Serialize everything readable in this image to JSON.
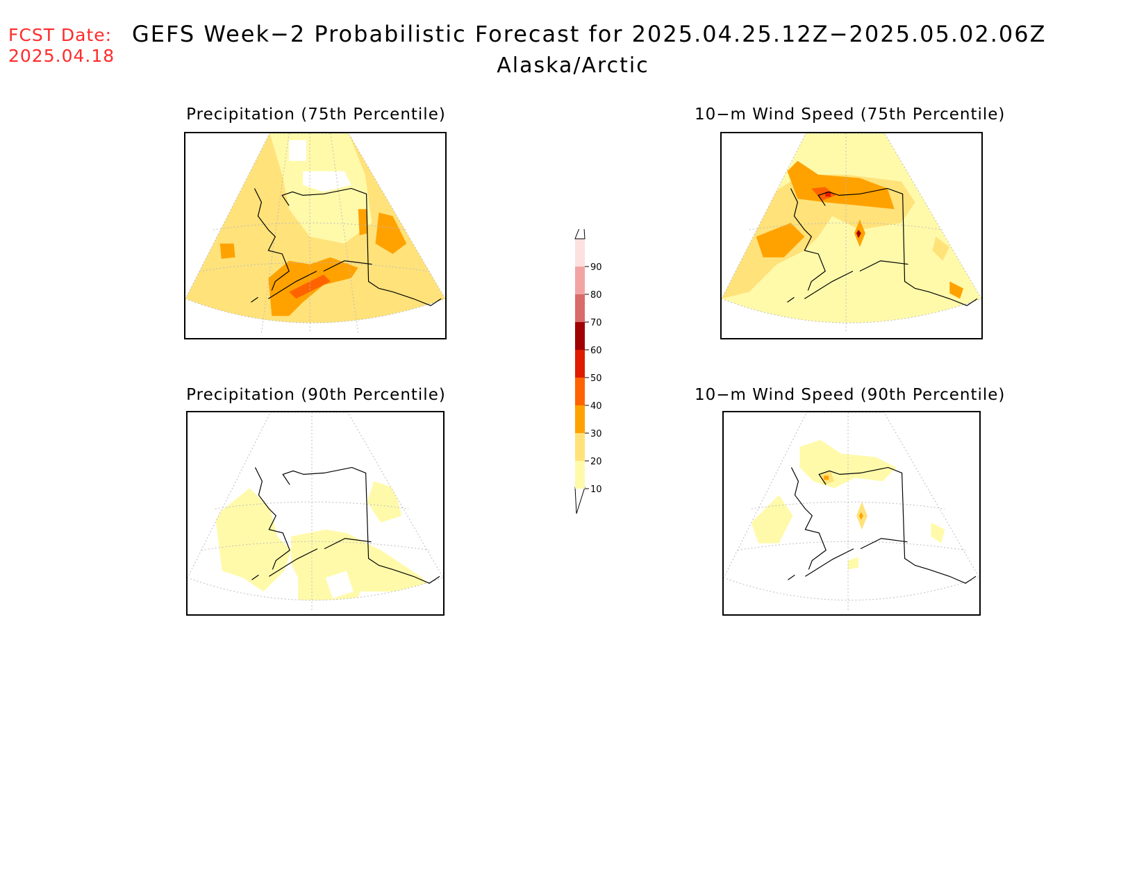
{
  "header": {
    "fcst_label": "FCST Date:",
    "fcst_date": "2025.04.18",
    "title": "GEFS Week−2 Probabilistic Forecast for 2025.04.25.12Z−2025.05.02.06Z",
    "region": "Alaska/Arctic"
  },
  "panels": [
    {
      "id": "precip75",
      "title": "Precipitation (75th Percentile)"
    },
    {
      "id": "wind75",
      "title": "10−m Wind Speed (75th Percentile)"
    },
    {
      "id": "precip90",
      "title": "Precipitation (90th Percentile)"
    },
    {
      "id": "wind90",
      "title": "10−m Wind Speed (90th Percentile)"
    }
  ],
  "legend": {
    "levels": [
      "10",
      "20",
      "30",
      "40",
      "50",
      "60",
      "70",
      "80",
      "90"
    ],
    "colors": [
      "#fffaaa",
      "#ffe27a",
      "#ffa200",
      "#ff6300",
      "#e01a00",
      "#a00000",
      "#d96b6b",
      "#f2a4a4",
      "#fde0e0"
    ]
  }
}
